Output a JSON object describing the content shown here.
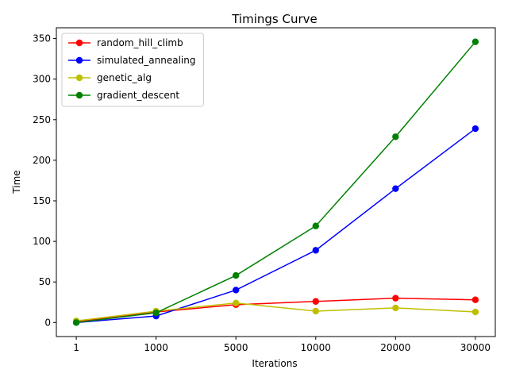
{
  "chart_data": {
    "type": "line",
    "title": "Timings Curve",
    "xlabel": "Iterations",
    "ylabel": "Time",
    "categories": [
      "1",
      "1000",
      "5000",
      "10000",
      "20000",
      "30000"
    ],
    "ylim": [
      -17.3,
      363.3
    ],
    "yticks": [
      0,
      50,
      100,
      150,
      200,
      250,
      300,
      350
    ],
    "grid": false,
    "legend_position": "top-left",
    "series": [
      {
        "name": "random_hill_climb",
        "color": "#ff0000",
        "values": [
          1,
          13,
          22,
          26,
          30,
          28
        ]
      },
      {
        "name": "simulated_annealing",
        "color": "#0000ff",
        "values": [
          0,
          8,
          40,
          89,
          165,
          239
        ]
      },
      {
        "name": "genetic_alg",
        "color": "#bfbf00",
        "values": [
          2,
          14,
          24,
          14,
          18,
          13
        ]
      },
      {
        "name": "gradient_descent",
        "color": "#008000",
        "values": [
          0,
          12,
          58,
          119,
          229,
          346
        ]
      }
    ]
  }
}
